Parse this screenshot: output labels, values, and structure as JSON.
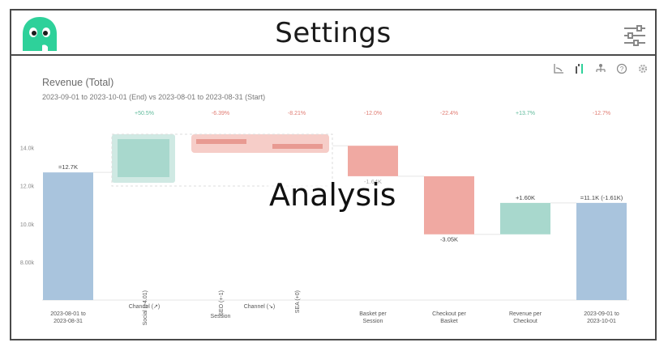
{
  "header": {
    "title": "Settings",
    "logo_icon": "ghost-logo-icon",
    "settings_icon": "sliders-icon",
    "brand_color": "#2ed19a"
  },
  "panel": {
    "toolbar_icons": [
      "axis-chart-icon",
      "bar-toggle-icon",
      "hierarchy-icon",
      "help-icon",
      "gear-icon"
    ],
    "chart_title": "Revenue (Total)",
    "chart_subtitle": "2023-09-01 to 2023-10-01 (End) vs 2023-08-01 to 2023-08-31 (Start)",
    "overlay_text": "Analysis"
  },
  "chart_data": {
    "type": "bar",
    "subtype": "waterfall",
    "title": "Revenue (Total)",
    "y_ticks": [
      "8.00k",
      "10.0k",
      "12.0k",
      "14.0k"
    ],
    "ylim": [
      6000,
      15000
    ],
    "colors": {
      "total": "#a9c4dd",
      "increase": "#a8d8cd",
      "decrease": "#f0a9a2",
      "pct_up": "#5fba9b",
      "pct_down": "#e07b72"
    },
    "percent_labels": [
      "+50.5%",
      "-6.39%",
      "-8.21%",
      "-12.0%",
      "-22.4%",
      "+13.7%",
      "-12.7%"
    ],
    "bars": [
      {
        "kind": "total",
        "start": 6000,
        "end": 12700,
        "value_label": "=12.7K",
        "axis_label": "2023-08-01 to\n2023-08-31"
      },
      {
        "kind": "group",
        "start": 12700,
        "end": 14200,
        "axis_label": "Channel (↗)",
        "pct": "+50.5%"
      },
      {
        "kind": "group",
        "start": 14700,
        "end": 14100,
        "axis_label": "Channel (↘)",
        "pct": "-6.39%"
      },
      {
        "kind": "decrease",
        "start": 14100,
        "end": 12500,
        "value_label": "-1.64K",
        "axis_label": "Basket per\nSession",
        "pct": "-12.0%"
      },
      {
        "kind": "decrease",
        "start": 12500,
        "end": 9450,
        "value_label": "-3.05K",
        "axis_label": "Checkout per\nBasket",
        "pct": "-22.4%"
      },
      {
        "kind": "increase",
        "start": 9450,
        "end": 11100,
        "value_label": "+1.60K",
        "axis_label": "Revenue per\nCheckout",
        "pct": "+13.7%"
      },
      {
        "kind": "total",
        "start": 6000,
        "end": 11100,
        "value_label": "=11.1K (-1.61K)",
        "axis_label": "2023-09-01 to\n2023-10-01",
        "pct": "-12.7%"
      }
    ],
    "group_axis_labels": [
      "Channel (↗)",
      "Session",
      "Channel (↘)"
    ],
    "rotated_labels": [
      "Social (+4.01)",
      "SEO (+-1)",
      "SEA (+0)"
    ]
  }
}
